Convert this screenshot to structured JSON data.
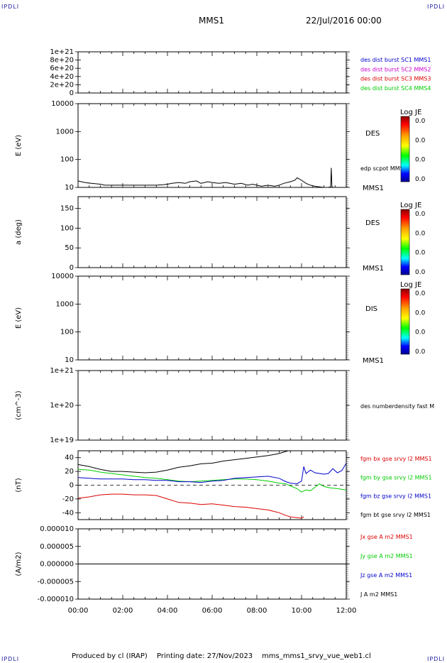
{
  "corner_label": "IPDLI",
  "header": {
    "spacecraft": "MMS1",
    "date": "22/Jul/2016 00:00"
  },
  "footer": {
    "produced": "Produced by cl (IRAP)",
    "printing": "Printing date: 27/Nov/2023",
    "file": "mms_mms1_srvy_vue_web1.cl"
  },
  "time_axis": {
    "ticks": [
      "00:00",
      "02:00",
      "04:00",
      "06:00",
      "08:00",
      "10:00",
      "12:00"
    ],
    "range_hours": [
      0,
      12
    ]
  },
  "colors": {
    "black": "#000000",
    "blue": "#0000cc",
    "magenta": "#cc00cc",
    "red": "#dd0000",
    "green": "#00cc00"
  },
  "chart_data": [
    {
      "type": "line",
      "panel": "burst-flags",
      "ylabel": "",
      "yticks": [
        "1e+21",
        "8e+20",
        "6e+20",
        "4e+20",
        "2e+20",
        "0"
      ],
      "ylim": [
        0,
        1e+21
      ],
      "legend": [
        {
          "text": "des dist burst SC1 MMS1",
          "color": "blue"
        },
        {
          "text": "des dist burst SC2 MMS2",
          "color": "magenta"
        },
        {
          "text": "des dist burst SC3 MMS3",
          "color": "red"
        },
        {
          "text": "des dist burst SC4 MMS4",
          "color": "green"
        }
      ],
      "series": []
    },
    {
      "type": "line",
      "panel": "des-energy",
      "ylabel": "E (eV)",
      "scale": "log",
      "yticks": [
        "10000",
        "1000",
        "100",
        "10"
      ],
      "ylim": [
        10,
        10000
      ],
      "side_label": "DES",
      "sat_label": "MMS1",
      "series_label": "edp scpot MMS1",
      "colorbar": {
        "title": "Log JE",
        "ticks": [
          "0.0",
          "0.0",
          "0.0",
          "0.0"
        ]
      },
      "series": [
        {
          "name": "edp scpot MMS1",
          "color": "black",
          "x": [
            0,
            0.3,
            0.6,
            1.0,
            1.2,
            1.5,
            2.0,
            2.5,
            3.0,
            3.5,
            3.8,
            4.0,
            4.2,
            4.5,
            4.8,
            5.0,
            5.3,
            5.5,
            5.8,
            6.0,
            6.3,
            6.6,
            7.0,
            7.3,
            7.6,
            7.8,
            8.0,
            8.2,
            8.5,
            8.8,
            9.0,
            9.2,
            9.5,
            9.7,
            9.8,
            9.9,
            10.0,
            10.2,
            10.4,
            10.6,
            10.8,
            11.0,
            11.2,
            11.3,
            11.33,
            11.36,
            11.4
          ],
          "y": [
            17,
            15,
            14,
            13,
            12,
            12,
            12,
            12,
            12,
            12,
            12.5,
            13,
            14,
            15,
            14,
            16,
            17,
            14,
            16,
            15,
            14,
            15,
            13,
            14,
            12,
            13,
            12,
            11,
            12,
            11,
            12,
            14,
            16,
            18,
            22,
            20,
            18,
            14,
            12,
            11,
            10.5,
            10,
            10,
            10.5,
            50,
            11,
            10
          ]
        }
      ]
    },
    {
      "type": "line",
      "panel": "des-pitch",
      "ylabel": "a (deg)",
      "yticks": [
        "150",
        "100",
        "50",
        "0"
      ],
      "ylim": [
        0,
        180
      ],
      "side_label": "DES",
      "sat_label": "MMS1",
      "colorbar": {
        "title": "Log JE",
        "ticks": [
          "0.0",
          "0.0",
          "0.0",
          "0.0"
        ]
      },
      "series": []
    },
    {
      "type": "line",
      "panel": "dis-energy",
      "ylabel": "E (eV)",
      "scale": "log",
      "yticks": [
        "10000",
        "1000",
        "100",
        "10"
      ],
      "ylim": [
        10,
        10000
      ],
      "side_label": "DIS",
      "sat_label": "MMS1",
      "colorbar": {
        "title": "Log JE",
        "ticks": [
          "0.0",
          "0.0",
          "0.0",
          "0.0"
        ]
      },
      "series": []
    },
    {
      "type": "line",
      "panel": "density",
      "ylabel": "(cm^-3)",
      "scale": "log",
      "yticks": [
        "1e+21",
        "1e+20",
        "1e+19"
      ],
      "ylim": [
        1e+19,
        1e+21
      ],
      "legend": [
        {
          "text": "des numberdensity fast M",
          "color": "black"
        }
      ],
      "series": []
    },
    {
      "type": "line",
      "panel": "fgm",
      "ylabel": "(nT)",
      "yticks": [
        "40",
        "20",
        "0",
        "-20",
        "-40"
      ],
      "ylim": [
        -50,
        50
      ],
      "legend": [
        {
          "text": "fgm bx gse srvy l2 MMS1",
          "color": "red"
        },
        {
          "text": "fgm by gse srvy l2 MMS1",
          "color": "green"
        },
        {
          "text": "fgm bz gse srvy l2 MMS1",
          "color": "blue"
        },
        {
          "text": "fgm bt gse srvy l2 MMS1",
          "color": "black"
        }
      ],
      "series": [
        {
          "name": "fgm bx gse srvy l2 MMS1",
          "color": "red",
          "x": [
            0,
            0.5,
            1.0,
            1.5,
            2.0,
            2.5,
            3.0,
            3.5,
            4.0,
            4.5,
            5.0,
            5.5,
            6.0,
            6.5,
            7.0,
            7.5,
            8.0,
            8.5,
            9.0,
            9.3,
            9.5,
            10.0,
            10.1
          ],
          "y": [
            -19,
            -17,
            -14,
            -13,
            -13,
            -14,
            -14,
            -15,
            -20,
            -25,
            -26,
            -28,
            -27,
            -29,
            -31,
            -32,
            -34,
            -36,
            -40,
            -44,
            -46,
            -48,
            -46
          ]
        },
        {
          "name": "fgm by gse srvy l2 MMS1",
          "color": "green",
          "x": [
            0,
            0.5,
            1.0,
            1.5,
            2.0,
            2.5,
            3.0,
            3.5,
            4.0,
            4.5,
            5.0,
            5.5,
            6.0,
            6.5,
            7.0,
            7.5,
            8.0,
            8.5,
            9.0,
            9.3,
            9.5,
            9.8,
            10.0,
            10.2,
            10.4,
            10.6,
            10.8,
            11.0,
            11.3,
            11.6,
            12.0
          ],
          "y": [
            23,
            22,
            19,
            17,
            15,
            13,
            11,
            10,
            8,
            6,
            5,
            6,
            7,
            8,
            9,
            9,
            8,
            6,
            3,
            2,
            -1,
            -5,
            -10,
            -7,
            -8,
            -3,
            2,
            -2,
            -4,
            -5,
            -7
          ]
        },
        {
          "name": "fgm bz gse srvy l2 MMS1",
          "color": "blue",
          "x": [
            0,
            0.5,
            1.0,
            1.5,
            2.0,
            2.5,
            3.0,
            3.5,
            4.0,
            4.5,
            5.0,
            5.5,
            6.0,
            6.5,
            7.0,
            7.5,
            8.0,
            8.5,
            9.0,
            9.3,
            9.5,
            9.8,
            10.0,
            10.1,
            10.2,
            10.4,
            10.6,
            10.8,
            11.0,
            11.2,
            11.4,
            11.6,
            11.8,
            12.0
          ],
          "y": [
            11,
            10,
            9,
            9,
            9,
            8,
            8,
            7,
            7,
            5,
            5,
            4,
            6,
            7,
            10,
            11,
            12,
            13,
            10,
            5,
            3,
            2,
            6,
            27,
            17,
            22,
            18,
            17,
            16,
            17,
            24,
            18,
            21,
            32
          ]
        },
        {
          "name": "fgm bt gse srvy l2 MMS1",
          "color": "black",
          "x": [
            0,
            0.5,
            1.0,
            1.5,
            2.0,
            2.5,
            3.0,
            3.5,
            4.0,
            4.5,
            5.0,
            5.5,
            6.0,
            6.5,
            7.0,
            7.5,
            8.0,
            8.5,
            9.0,
            9.2,
            9.4
          ],
          "y": [
            30,
            27,
            23,
            20,
            20,
            19,
            18,
            19,
            22,
            26,
            28,
            31,
            32,
            35,
            37,
            39,
            41,
            43,
            46,
            48,
            50
          ]
        }
      ]
    },
    {
      "type": "line",
      "panel": "current",
      "ylabel": "(A/m2)",
      "yticks": [
        "0.000010",
        "0.000005",
        "0.000000",
        "-0.000005",
        "-0.000010"
      ],
      "ylim": [
        -1e-05,
        1e-05
      ],
      "legend": [
        {
          "text": "Jx gse A m2 MMS1",
          "color": "red"
        },
        {
          "text": "Jy gse A m2 MMS1",
          "color": "green"
        },
        {
          "text": "Jz gse A m2 MMS1",
          "color": "blue"
        },
        {
          "text": "J A m2 MMS1",
          "color": "black"
        }
      ],
      "series": [
        {
          "name": "J A m2 MMS1",
          "color": "black",
          "x": [
            0,
            12
          ],
          "y": [
            0,
            0
          ]
        }
      ]
    }
  ]
}
